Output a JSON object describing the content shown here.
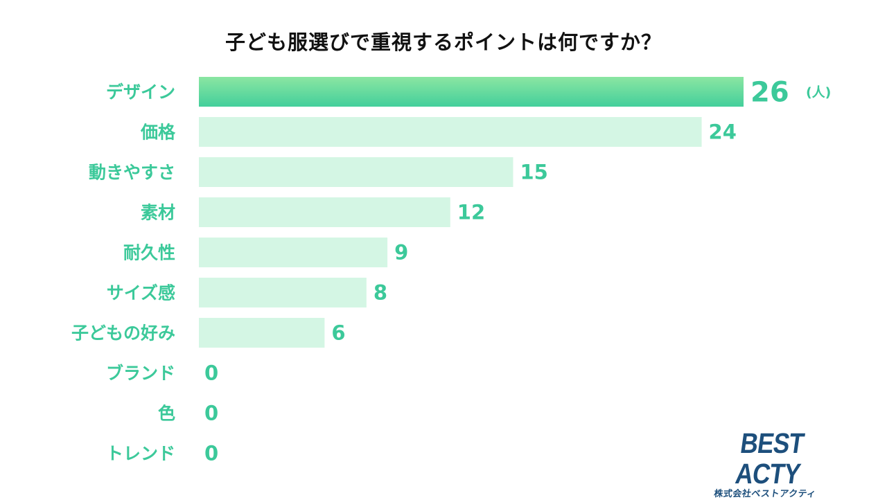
{
  "title": "子ども服選びで重視するポイントは何ですか？",
  "chart_data": {
    "type": "bar",
    "orientation": "horizontal",
    "title": "子ども服選びで重視するポイントは何ですか？",
    "categories": [
      "デザイン",
      "価格",
      "動きやすさ",
      "素材",
      "耐久性",
      "サイズ感",
      "子どもの好み",
      "ブランド",
      "色",
      "トレンド"
    ],
    "values": [
      26,
      24,
      15,
      12,
      9,
      8,
      6,
      0,
      0,
      0
    ],
    "unit": "(人)",
    "xlim": [
      0,
      26
    ],
    "grid": false,
    "legend": "none",
    "highlight_index": 0
  },
  "logo": {
    "name": "BEST ACTY",
    "subtitle": "株式会社ベストアクティ"
  },
  "colors": {
    "highlight_top": "#8be6a2",
    "highlight_bottom": "#43cf9b",
    "bar_light": "#d4f6e4",
    "text_accent": "#3cc99a",
    "title": "#111111",
    "logo": "#1d4f7c"
  }
}
